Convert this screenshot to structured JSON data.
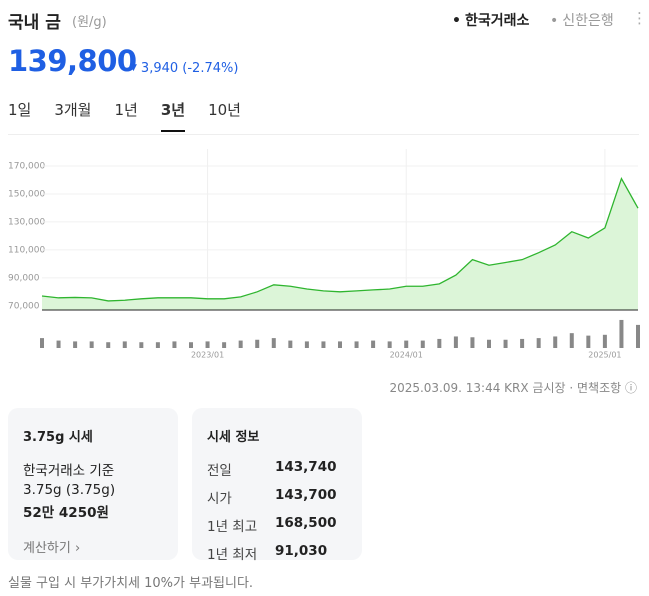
{
  "header": {
    "title": "국내 금",
    "unit": "(원/g)",
    "sources": [
      "한국거래소",
      "신한은행"
    ],
    "price": "139,800",
    "change": "3,940",
    "change_pct": "(-2.74%)"
  },
  "tabs": [
    "1일",
    "3개월",
    "1년",
    "3년",
    "10년"
  ],
  "selected_tab": 3,
  "chart_data": {
    "type": "line",
    "x": [
      "2022/03",
      "2022/04",
      "2022/05",
      "2022/06",
      "2022/07",
      "2022/08",
      "2022/09",
      "2022/10",
      "2022/11",
      "2022/12",
      "2023/01",
      "2023/02",
      "2023/03",
      "2023/04",
      "2023/05",
      "2023/06",
      "2023/07",
      "2023/08",
      "2023/09",
      "2023/10",
      "2023/11",
      "2023/12",
      "2024/01",
      "2024/02",
      "2024/03",
      "2024/04",
      "2024/05",
      "2024/06",
      "2024/07",
      "2024/08",
      "2024/09",
      "2024/10",
      "2024/11",
      "2024/12",
      "2025/01",
      "2025/02",
      "2025/03"
    ],
    "series": [
      {
        "color": "#2fb52f",
        "values": [
          77000,
          75700,
          76000,
          75700,
          73500,
          74000,
          75000,
          75700,
          75700,
          75700,
          75000,
          75000,
          76400,
          80000,
          85000,
          84000,
          82000,
          80700,
          80000,
          80700,
          81400,
          82000,
          84000,
          84000,
          85700,
          92000,
          103000,
          99000,
          101000,
          103000,
          108000,
          113500,
          123000,
          118500,
          125700,
          161000,
          139800
        ]
      }
    ],
    "volume": [
      12,
      9,
      8,
      8,
      7,
      8,
      7,
      7,
      8,
      7,
      8,
      7,
      9,
      10,
      12,
      9,
      8,
      8,
      8,
      8,
      9,
      8,
      9,
      9,
      11,
      14,
      13,
      10,
      10,
      11,
      12,
      14,
      18,
      15,
      16,
      34,
      28
    ],
    "volume_lim": [
      0,
      40
    ],
    "ylim": [
      67000,
      175000
    ],
    "yticks": [
      {
        "value": 70000,
        "label": "70,000"
      },
      {
        "value": 90000,
        "label": "90,000"
      },
      {
        "value": 110000,
        "label": "110,000"
      },
      {
        "value": 130000,
        "label": "130,000"
      },
      {
        "value": 150000,
        "label": "150,000"
      },
      {
        "value": 170000,
        "label": "170,000"
      }
    ],
    "xticks": [
      "2023/01",
      "2024/01",
      "2025/01"
    ],
    "grid": true
  },
  "timestamp": "2025.03.09. 13:44 KRX 금시장",
  "disclaimer": "면책조항",
  "card_price": {
    "title": "3.75g 시세",
    "basis": "한국거래소 기준",
    "weight": "3.75g (3.75g)",
    "price": "52만 4250원",
    "link": "계산하기"
  },
  "card_info": {
    "title": "시세 정보",
    "rows": [
      [
        "전일",
        "143,740"
      ],
      [
        "시가",
        "143,700"
      ],
      [
        "1년 최고",
        "168,500"
      ],
      [
        "1년 최저",
        "91,030"
      ]
    ]
  },
  "footer": "실물 구입 시 부가가치세 10%가 부과됩니다."
}
